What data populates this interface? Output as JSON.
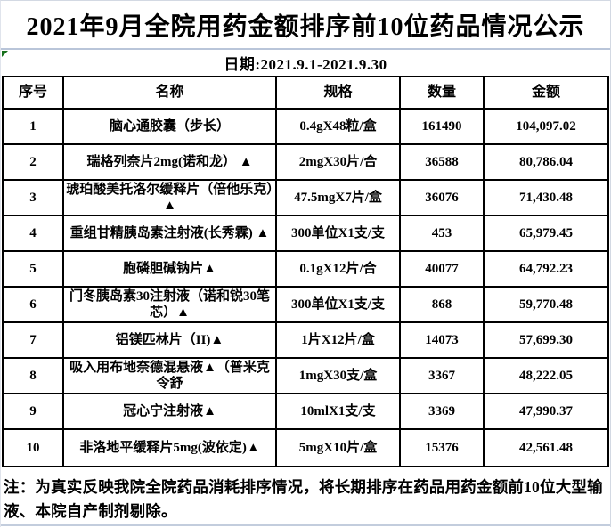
{
  "title": "2021年9月全院用药金额排序前10位药品情况公示",
  "date_label": "日期:2021.9.1-2021.9.30",
  "colors": {
    "table_border": "#000000",
    "divider_line": "#b9c5d9",
    "flag_green": "#17701c"
  },
  "table": {
    "headers": [
      "序号",
      "名称",
      "规格",
      "数量",
      "金额"
    ],
    "rows": [
      [
        "1",
        "脑心通胶囊（步长）",
        "0.4gX48粒/盒",
        "161490",
        "104,097.02"
      ],
      [
        "2",
        "瑞格列奈片2mg(诺和龙） ▲",
        "2mgX30片/合",
        "36588",
        "80,786.04"
      ],
      [
        "3",
        "琥珀酸美托洛尔缓释片（倍他乐克）▲",
        "47.5mgX7片/盒",
        "36076",
        "71,430.48"
      ],
      [
        "4",
        "重组甘精胰岛素注射液(长秀霖) ▲",
        "300单位X1支/支",
        "453",
        "65,979.45"
      ],
      [
        "5",
        "胞磷胆碱钠片▲",
        "0.1gX12片/合",
        "40077",
        "64,792.23"
      ],
      [
        "6",
        "门冬胰岛素30注射液（诺和锐30笔芯）▲",
        "300单位X1支/支",
        "868",
        "59,770.48"
      ],
      [
        "7",
        "铝镁匹林片（II)▲",
        "1片X12片/盒",
        "14073",
        "57,699.30"
      ],
      [
        "8",
        "吸入用布地奈德混悬液▲（普米克令舒",
        "1mgX30支/盒",
        "3367",
        "48,222.05"
      ],
      [
        "9",
        "冠心宁注射液▲",
        "10mlX1支/支",
        "3369",
        "47,990.37"
      ],
      [
        "10",
        "非洛地平缓释片5mg(波依定)▲",
        "5mgX10片/盒",
        "15376",
        "42,561.48"
      ]
    ]
  },
  "note": "注：为真实反映我院全院药品消耗排序情况，将长期排序在药品用药金额前10位大型输液、本院自产制剂剔除。"
}
